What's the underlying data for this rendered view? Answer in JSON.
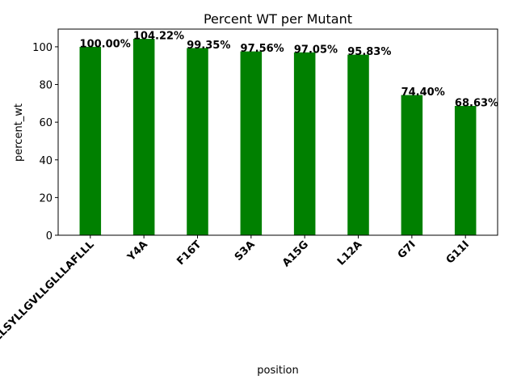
{
  "chart_data": {
    "type": "bar",
    "title": "Percent WT per Mutant",
    "xlabel": "position",
    "ylabel": "percent_wt",
    "categories": [
      "LLLSYLLGVLLGLLLAFLLL",
      "Y4A",
      "F16T",
      "S3A",
      "A15G",
      "L12A",
      "G7I",
      "G11I"
    ],
    "values": [
      100.0,
      104.22,
      99.35,
      97.56,
      97.05,
      95.83,
      74.4,
      68.63
    ],
    "data_labels": [
      "100.00%",
      "104.22%",
      "99.35%",
      "97.56%",
      "97.05%",
      "95.83%",
      "74.40%",
      "68.63%"
    ],
    "ylim": [
      0,
      109.4
    ],
    "yticks": [
      0,
      20,
      40,
      60,
      80,
      100
    ],
    "bar_color": "#008000",
    "grid": false,
    "legend": "none"
  }
}
